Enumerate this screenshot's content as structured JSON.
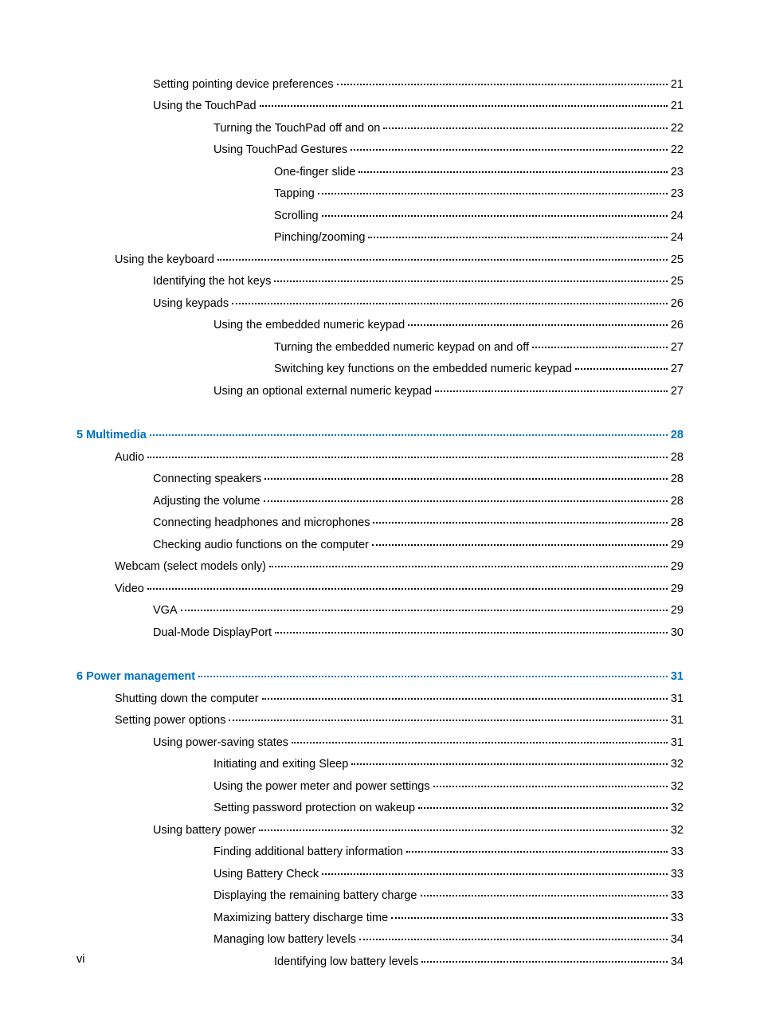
{
  "page_number_label": "vi",
  "colors": {
    "chapter_link": "#0070c0",
    "text": "#000000",
    "background": "#ffffff"
  },
  "font": {
    "family": "Arial",
    "size_pt": 11
  },
  "toc": {
    "entries": [
      {
        "level": 2,
        "label": "Setting pointing device preferences",
        "page": "21",
        "chapter": false
      },
      {
        "level": 2,
        "label": "Using the TouchPad",
        "page": "21",
        "chapter": false
      },
      {
        "level": 3,
        "label": "Turning the TouchPad off and on",
        "page": "22",
        "chapter": false
      },
      {
        "level": 3,
        "label": "Using TouchPad Gestures",
        "page": "22",
        "chapter": false
      },
      {
        "level": 4,
        "label": "One-finger slide",
        "page": "23",
        "chapter": false
      },
      {
        "level": 4,
        "label": "Tapping",
        "page": "23",
        "chapter": false
      },
      {
        "level": 4,
        "label": "Scrolling",
        "page": "24",
        "chapter": false
      },
      {
        "level": 4,
        "label": "Pinching/zooming",
        "page": "24",
        "chapter": false
      },
      {
        "level": 1,
        "label": "Using the keyboard",
        "page": "25",
        "chapter": false
      },
      {
        "level": 2,
        "label": "Identifying the hot keys",
        "page": "25",
        "chapter": false
      },
      {
        "level": 2,
        "label": "Using keypads",
        "page": "26",
        "chapter": false
      },
      {
        "level": 3,
        "label": "Using the embedded numeric keypad",
        "page": "26",
        "chapter": false
      },
      {
        "level": 4,
        "label": "Turning the embedded numeric keypad on and off",
        "page": "27",
        "chapter": false
      },
      {
        "level": 4,
        "label": "Switching key functions on the embedded numeric keypad",
        "page": "27",
        "chapter": false
      },
      {
        "level": 3,
        "label": "Using an optional external numeric keypad",
        "page": "27",
        "chapter": false
      },
      {
        "gap": true
      },
      {
        "level": 0,
        "label": "5  Multimedia",
        "page": "28",
        "chapter": true
      },
      {
        "level": 1,
        "label": "Audio",
        "page": "28",
        "chapter": false
      },
      {
        "level": 2,
        "label": "Connecting speakers",
        "page": "28",
        "chapter": false
      },
      {
        "level": 2,
        "label": "Adjusting the volume",
        "page": "28",
        "chapter": false
      },
      {
        "level": 2,
        "label": "Connecting headphones and microphones",
        "page": "28",
        "chapter": false
      },
      {
        "level": 2,
        "label": "Checking audio functions on the computer",
        "page": "29",
        "chapter": false
      },
      {
        "level": 1,
        "label": "Webcam (select models only)",
        "page": "29",
        "chapter": false
      },
      {
        "level": 1,
        "label": "Video",
        "page": "29",
        "chapter": false
      },
      {
        "level": 2,
        "label": "VGA",
        "page": "29",
        "chapter": false
      },
      {
        "level": 2,
        "label": "Dual-Mode DisplayPort",
        "page": "30",
        "chapter": false
      },
      {
        "gap": true
      },
      {
        "level": 0,
        "label": "6  Power management",
        "page": "31",
        "chapter": true
      },
      {
        "level": 1,
        "label": "Shutting down the computer",
        "page": "31",
        "chapter": false
      },
      {
        "level": 1,
        "label": "Setting power options",
        "page": "31",
        "chapter": false
      },
      {
        "level": 2,
        "label": "Using power-saving states",
        "page": "31",
        "chapter": false
      },
      {
        "level": 3,
        "label": "Initiating and exiting Sleep",
        "page": "32",
        "chapter": false
      },
      {
        "level": 3,
        "label": "Using the power meter and power settings",
        "page": "32",
        "chapter": false
      },
      {
        "level": 3,
        "label": "Setting password protection on wakeup",
        "page": "32",
        "chapter": false
      },
      {
        "level": 2,
        "label": "Using battery power",
        "page": "32",
        "chapter": false
      },
      {
        "level": 3,
        "label": "Finding additional battery information",
        "page": "33",
        "chapter": false
      },
      {
        "level": 3,
        "label": "Using Battery Check",
        "page": "33",
        "chapter": false
      },
      {
        "level": 3,
        "label": "Displaying the remaining battery charge",
        "page": "33",
        "chapter": false
      },
      {
        "level": 3,
        "label": "Maximizing battery discharge time",
        "page": "33",
        "chapter": false
      },
      {
        "level": 3,
        "label": "Managing low battery levels",
        "page": "34",
        "chapter": false
      },
      {
        "level": 4,
        "label": "Identifying low battery levels",
        "page": "34",
        "chapter": false
      }
    ]
  }
}
